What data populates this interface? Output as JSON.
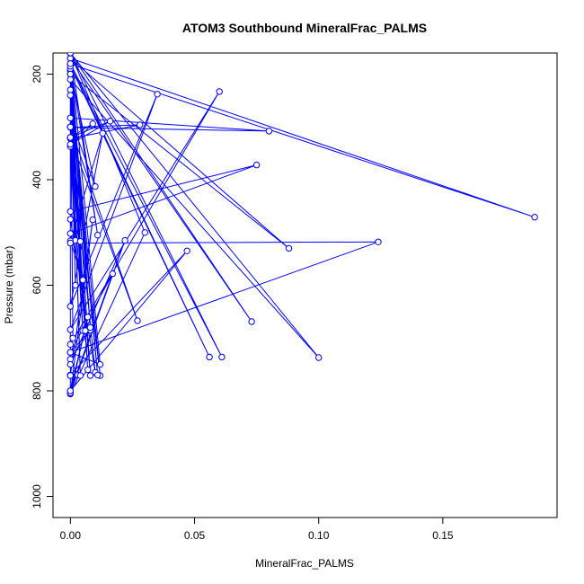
{
  "chart_data": {
    "type": "line",
    "title": "ATOM3 Southbound MineralFrac_PALMS",
    "xlabel": "MineralFrac_PALMS",
    "ylabel": "Pressure (mbar)",
    "xlim": [
      -0.007,
      0.196
    ],
    "ylim": [
      1040,
      160
    ],
    "y_reversed": true,
    "x_ticks": [
      "0.00",
      "0.05",
      "0.10",
      "0.15"
    ],
    "x_tick_values": [
      0,
      0.05,
      0.1,
      0.15
    ],
    "y_ticks": [
      "200",
      "400",
      "600",
      "800",
      "1000"
    ],
    "y_tick_values": [
      200,
      400,
      600,
      800,
      1000
    ],
    "grid": false,
    "series_color": "#0000ff",
    "series": [
      {
        "x": [
          0.0,
          0.01,
          0.0,
          0.08,
          0.0,
          0.028,
          0.0,
          0.002,
          0.0,
          0.009,
          0.0,
          0.016,
          0.0,
          0.004,
          0.0,
          0.075,
          0.0,
          0.005,
          0.0,
          0.013,
          0.0,
          0.035,
          0.0,
          0.06,
          0.0,
          0.0,
          0.008,
          0.0,
          0.003,
          0.0,
          0.0,
          0.007,
          0.0,
          0.03,
          0.0,
          0.011,
          0.0,
          0.187,
          0.0,
          0.088,
          0.0,
          0.005,
          0.0,
          0.027,
          0.0,
          0.01,
          0.0,
          0.0,
          0.124,
          0.0,
          0.0,
          0.022,
          0.0,
          0.009,
          0.0,
          0.047,
          0.0,
          0.017,
          0.0,
          0.012,
          0.0,
          0.001,
          0.0,
          0.006,
          0.0,
          0.008,
          0.0,
          0.073,
          0.0,
          0.004,
          0.0,
          0.056,
          0.0,
          0.061,
          0.0,
          0.1,
          0.0,
          0.012,
          0.0,
          0.007,
          0.0,
          0.002,
          0.0,
          0.011,
          0.0,
          0.008,
          0.0,
          0.0
        ],
        "y": [
          193,
          413,
          283,
          308,
          301,
          296,
          322,
          515,
          337,
          294,
          320,
          289,
          333,
          517,
          460,
          372,
          502,
          590,
          516,
          312,
          640,
          238,
          684,
          233,
          712,
          727,
          685,
          740,
          770,
          771,
          800,
          660,
          806,
          500,
          160,
          505,
          181,
          471,
          170,
          530,
          200,
          686,
          320,
          667,
          300,
          765,
          475,
          520,
          518,
          727,
          750,
          515,
          804,
          476,
          770,
          535,
          800,
          578,
          727,
          750,
          160,
          700,
          190,
          686,
          300,
          771,
          170,
          669,
          160,
          771,
          185,
          736,
          180,
          736,
          160,
          737,
          210,
          771,
          300,
          760,
          230,
          600,
          240,
          770,
          200,
          680,
          160,
          771
        ]
      }
    ]
  }
}
